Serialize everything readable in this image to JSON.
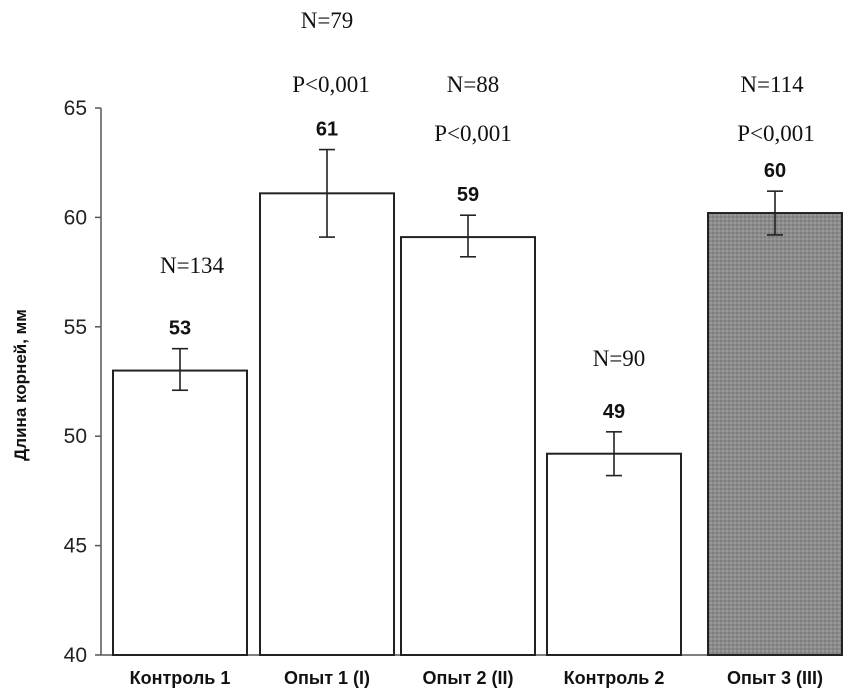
{
  "chart_data": {
    "type": "bar",
    "ylabel": "Длина корней, мм",
    "ylim": [
      40,
      65
    ],
    "yticks": [
      40,
      45,
      50,
      55,
      60,
      65
    ],
    "grid": false,
    "categories": [
      "Контроль 1",
      "Опыт 1 (I)",
      "Опыт 2 (II)",
      "Контроль 2",
      "Опыт 3 (III)"
    ],
    "values": [
      53,
      61,
      59,
      49,
      60
    ],
    "bar_values": [
      53,
      61.1,
      59.1,
      49.2,
      60.2
    ],
    "value_labels": [
      "53",
      "61",
      "59",
      "49",
      "60"
    ],
    "error": [
      {
        "low": 52.1,
        "high": 54.0
      },
      {
        "low": 59.1,
        "high": 63.1
      },
      {
        "low": 58.2,
        "high": 60.1
      },
      {
        "low": 48.2,
        "high": 50.2
      },
      {
        "low": 59.2,
        "high": 61.2
      }
    ],
    "n_labels": [
      "N=134",
      "N=79",
      "N=88",
      "N=90",
      "N=114"
    ],
    "p_labels": [
      "",
      "P<0,001",
      "P<0,001",
      "",
      "P<0,001"
    ],
    "bar_fills": [
      "#ffffff",
      "#ffffff",
      "#ffffff",
      "#ffffff",
      "#8c8c8c"
    ]
  }
}
